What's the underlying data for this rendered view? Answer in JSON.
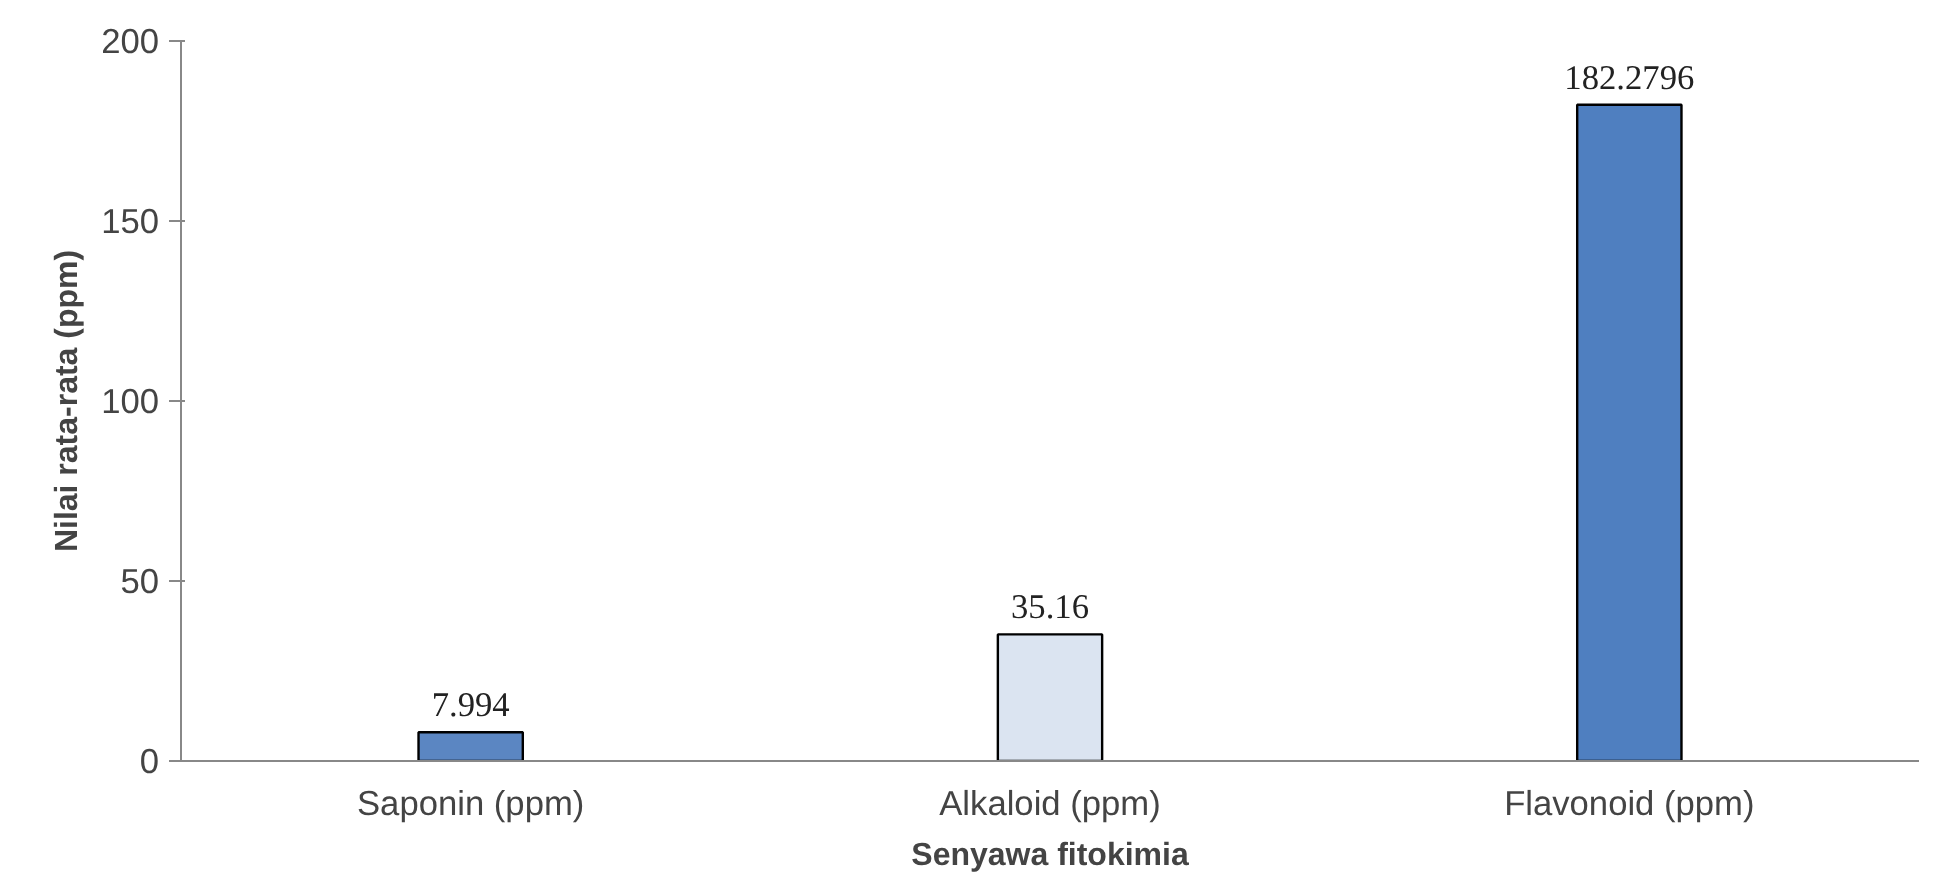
{
  "chart_data": {
    "type": "bar",
    "xlabel": "Senyawa fitokimia",
    "ylabel": "Nilai rata-rata (ppm)",
    "categories": [
      "Saponin (ppm)",
      "Alkaloid (ppm)",
      "Flavonoid (ppm)"
    ],
    "values": [
      7.994,
      35.16,
      182.2796
    ],
    "colors": [
      "#5b86c2",
      "#dbe4f1",
      "#4f7fc0"
    ],
    "ylim": [
      0,
      200
    ],
    "yticks": [
      0,
      50,
      100,
      150,
      200
    ],
    "grid": false,
    "data_labels": true
  }
}
